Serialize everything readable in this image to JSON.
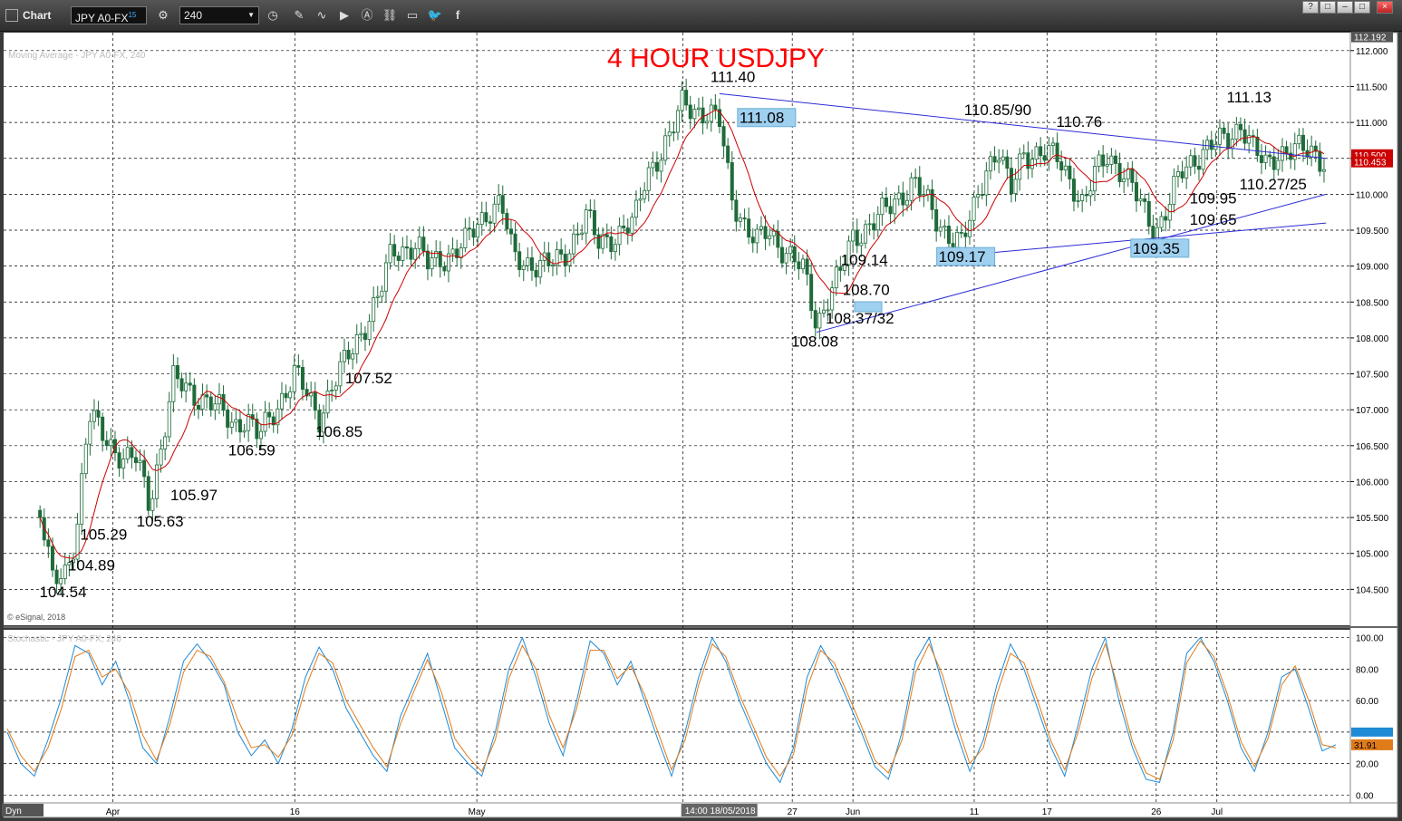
{
  "window": {
    "title": "Chart",
    "symbol": "JPY A0-FX",
    "symbol_badge": "15",
    "interval": "240",
    "controls": [
      "?",
      "□",
      "–",
      "□",
      "×"
    ]
  },
  "price_panel": {
    "study_label": "Moving Average - JPY A0-FX, 240",
    "watermark": "© eSignal, 2018"
  },
  "stoch_panel": {
    "study_label": "Stochastic - JPY A0-FX, 240"
  },
  "corner": {
    "dyn": "Dyn"
  },
  "crosshair_label": "14:00 18/05/2018",
  "chart_data": [
    {
      "type": "candlestick",
      "title": "4 HOUR USDJPY",
      "interval": "240",
      "x_tick_labels": [
        "Apr",
        "16",
        "May",
        "27",
        "Jun",
        "11",
        "17",
        "26",
        "Jul"
      ],
      "y_tick_labels": [
        "104.500",
        "105.000",
        "105.500",
        "106.000",
        "106.500",
        "107.000",
        "107.500",
        "108.000",
        "108.500",
        "109.000",
        "109.500",
        "110.000",
        "110.500",
        "111.000",
        "111.500",
        "112.000"
      ],
      "ylim": [
        104.0,
        112.25
      ],
      "grid": true,
      "price_tags": {
        "high": "112.192",
        "upper": "110.500",
        "last": "110.453"
      },
      "moving_average": {
        "color": "#cc0000"
      },
      "close_path": [
        [
          "2018-03-26",
          105.6
        ],
        [
          "2018-03-27",
          104.6
        ],
        [
          "2018-03-28",
          104.7
        ],
        [
          "2018-03-29",
          105.3
        ],
        [
          "2018-03-30",
          106.9
        ],
        [
          "2018-04-02",
          106.3
        ],
        [
          "2018-04-03",
          106.3
        ],
        [
          "2018-04-04",
          105.7
        ],
        [
          "2018-04-05",
          106.5
        ],
        [
          "2018-04-06",
          107.4
        ],
        [
          "2018-04-09",
          107.1
        ],
        [
          "2018-04-11",
          106.8
        ],
        [
          "2018-04-12",
          106.9
        ],
        [
          "2018-04-13",
          106.6
        ],
        [
          "2018-04-16",
          107.5
        ],
        [
          "2018-04-17",
          107.2
        ],
        [
          "2018-04-18",
          106.9
        ],
        [
          "2018-04-19",
          107.3
        ],
        [
          "2018-04-20",
          107.6
        ],
        [
          "2018-04-23",
          108.6
        ],
        [
          "2018-04-24",
          109.2
        ],
        [
          "2018-04-26",
          109.3
        ],
        [
          "2018-04-27",
          109.0
        ],
        [
          "2018-04-30",
          109.3
        ],
        [
          "2018-05-02",
          109.8
        ],
        [
          "2018-05-03",
          109.9
        ],
        [
          "2018-05-04",
          109.1
        ],
        [
          "2018-05-07",
          109.0
        ],
        [
          "2018-05-08",
          109.1
        ],
        [
          "2018-05-10",
          109.7
        ],
        [
          "2018-05-11",
          109.3
        ],
        [
          "2018-05-14",
          109.6
        ],
        [
          "2018-05-15",
          110.3
        ],
        [
          "2018-05-17",
          110.8
        ],
        [
          "2018-05-18",
          111.3
        ],
        [
          "2018-05-21",
          111.0
        ],
        [
          "2018-05-22",
          110.0
        ],
        [
          "2018-05-23",
          109.6
        ],
        [
          "2018-05-24",
          109.3
        ],
        [
          "2018-05-25",
          109.5
        ],
        [
          "2018-05-28",
          108.9
        ],
        [
          "2018-05-29",
          108.2
        ],
        [
          "2018-05-30",
          108.6
        ],
        [
          "2018-05-31",
          108.9
        ],
        [
          "2018-06-01",
          109.4
        ],
        [
          "2018-06-04",
          109.8
        ],
        [
          "2018-06-06",
          110.2
        ],
        [
          "2018-06-08",
          109.6
        ],
        [
          "2018-06-10",
          109.3
        ],
        [
          "2018-06-11",
          109.8
        ],
        [
          "2018-06-12",
          110.4
        ],
        [
          "2018-06-13",
          110.6
        ],
        [
          "2018-06-14",
          110.0
        ],
        [
          "2018-06-15",
          110.6
        ],
        [
          "2018-06-18",
          110.5
        ],
        [
          "2018-06-19",
          110.2
        ],
        [
          "2018-06-20",
          109.8
        ],
        [
          "2018-06-21",
          110.3
        ],
        [
          "2018-06-22",
          110.6
        ],
        [
          "2018-06-25",
          109.8
        ],
        [
          "2018-06-26",
          109.5
        ],
        [
          "2018-06-27",
          109.8
        ],
        [
          "2018-06-28",
          110.3
        ],
        [
          "2018-06-29",
          110.5
        ],
        [
          "2018-07-02",
          110.8
        ],
        [
          "2018-07-03",
          111.0
        ],
        [
          "2018-07-04",
          110.6
        ],
        [
          "2018-07-05",
          110.4
        ],
        [
          "2018-07-06",
          110.6
        ],
        [
          "2018-07-09",
          110.6
        ],
        [
          "2018-07-10",
          110.45
        ]
      ],
      "trendlines": [
        {
          "from": [
            "2018-05-21",
            111.4
          ],
          "to": [
            "2018-07-10",
            110.5
          ]
        },
        {
          "from": [
            "2018-05-29",
            108.08
          ],
          "to": [
            "2018-07-10",
            110.0
          ]
        },
        {
          "from": [
            "2018-06-10",
            109.15
          ],
          "to": [
            "2018-07-10",
            109.6
          ]
        }
      ],
      "annotations": [
        {
          "text": "111.40",
          "x": "2018-05-21",
          "y": 111.4
        },
        {
          "text": "111.08",
          "x": "2018-05-21",
          "y": 111.08,
          "boxed": true
        },
        {
          "text": "110.85/90",
          "x": "2018-06-13",
          "y": 110.9
        },
        {
          "text": "110.76",
          "x": "2018-06-20",
          "y": 110.76
        },
        {
          "text": "111.13",
          "x": "2018-07-03",
          "y": 111.13
        },
        {
          "text": "110.27/25",
          "x": "2018-07-03",
          "y": 110.27
        },
        {
          "text": "109.95",
          "x": "2018-06-28",
          "y": 109.95
        },
        {
          "text": "109.65",
          "x": "2018-06-28",
          "y": 109.65
        },
        {
          "text": "109.35",
          "x": "2018-06-26",
          "y": 109.35,
          "boxed": true
        },
        {
          "text": "109.17",
          "x": "2018-06-10",
          "y": 109.17,
          "boxed": true
        },
        {
          "text": "109.14",
          "x": "2018-05-31",
          "y": 109.14
        },
        {
          "text": "108.70",
          "x": "2018-05-31",
          "y": 108.7
        },
        {
          "text": "108.37/32",
          "x": "2018-05-29",
          "y": 108.35
        },
        {
          "text": "108.08",
          "x": "2018-05-29",
          "y": 108.08
        },
        {
          "text": "107.52",
          "x": "2018-04-20",
          "y": 107.52
        },
        {
          "text": "106.85",
          "x": "2018-04-18",
          "y": 106.85
        },
        {
          "text": "106.59",
          "x": "2018-04-12",
          "y": 106.59
        },
        {
          "text": "105.97",
          "x": "2018-04-05",
          "y": 105.97
        },
        {
          "text": "105.63",
          "x": "2018-04-04",
          "y": 105.63
        },
        {
          "text": "105.29",
          "x": "2018-03-29",
          "y": 105.29
        },
        {
          "text": "104.89",
          "x": "2018-03-28",
          "y": 104.89
        },
        {
          "text": "104.54",
          "x": "2018-03-27",
          "y": 104.54
        }
      ],
      "colors": {
        "background": "#ffffff",
        "candles": "#1f6b3a",
        "moving_average": "#cc0000",
        "trendline": "#2b2bd6",
        "annotation_box": "#9fd0ef",
        "title": "#ff0000"
      }
    },
    {
      "type": "line",
      "title": "Stochastic",
      "y_tick_labels": [
        "0.00",
        "20.00",
        "40.00",
        "60.00",
        "80.00",
        "100.00"
      ],
      "ylim": [
        -5,
        105
      ],
      "grid": true,
      "last_values": {
        "k": "31.91"
      },
      "series": [
        {
          "color": "#1f8ad6",
          "values": [
            40,
            20,
            12,
            35,
            62,
            95,
            90,
            70,
            85,
            60,
            30,
            20,
            50,
            85,
            96,
            85,
            70,
            40,
            25,
            35,
            20,
            42,
            75,
            94,
            80,
            55,
            40,
            25,
            15,
            50,
            70,
            90,
            60,
            30,
            20,
            12,
            40,
            80,
            100,
            75,
            45,
            25,
            60,
            98,
            90,
            70,
            85,
            60,
            35,
            12,
            40,
            75,
            100,
            85,
            60,
            40,
            20,
            8,
            30,
            75,
            95,
            80,
            60,
            40,
            18,
            10,
            40,
            85,
            100,
            70,
            40,
            15,
            35,
            70,
            96,
            80,
            55,
            30,
            12,
            45,
            80,
            100,
            60,
            30,
            10,
            8,
            40,
            90,
            100,
            85,
            60,
            30,
            15,
            40,
            75,
            80,
            55,
            28,
            32
          ]
        },
        {
          "color": "#e07b1a",
          "values": [
            42,
            25,
            15,
            30,
            55,
            88,
            92,
            75,
            80,
            65,
            38,
            22,
            45,
            78,
            92,
            88,
            72,
            48,
            30,
            32,
            24,
            38,
            68,
            90,
            84,
            60,
            45,
            30,
            18,
            45,
            66,
            86,
            66,
            36,
            24,
            15,
            35,
            74,
            95,
            80,
            50,
            30,
            55,
            92,
            92,
            74,
            82,
            64,
            40,
            16,
            35,
            70,
            96,
            88,
            64,
            44,
            24,
            12,
            26,
            68,
            92,
            84,
            64,
            44,
            22,
            14,
            35,
            78,
            96,
            76,
            46,
            20,
            30,
            64,
            90,
            84,
            60,
            34,
            16,
            40,
            74,
            96,
            66,
            34,
            14,
            10,
            35,
            84,
            98,
            88,
            64,
            34,
            18,
            36,
            70,
            82,
            60,
            32,
            30
          ]
        }
      ]
    }
  ]
}
